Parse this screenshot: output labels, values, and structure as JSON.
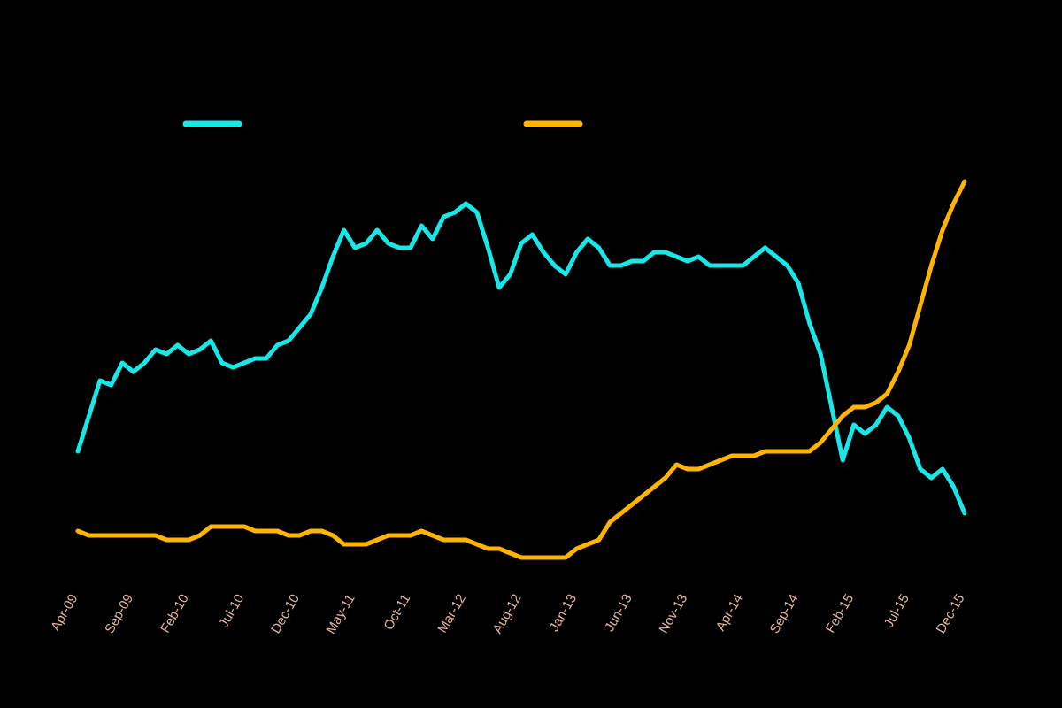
{
  "chart_data": {
    "type": "line",
    "categories": [
      "Apr-09",
      null,
      null,
      null,
      null,
      "Sep-09",
      null,
      null,
      null,
      null,
      "Feb-10",
      null,
      null,
      null,
      null,
      "Jul-10",
      null,
      null,
      null,
      null,
      "Dec-10",
      null,
      null,
      null,
      null,
      "May-11",
      null,
      null,
      null,
      null,
      "Oct-11",
      null,
      null,
      null,
      null,
      "Mar-12",
      null,
      null,
      null,
      null,
      "Aug-12",
      null,
      null,
      null,
      null,
      "Jan-13",
      null,
      null,
      null,
      null,
      "Jun-13",
      null,
      null,
      null,
      null,
      "Nov-13",
      null,
      null,
      null,
      null,
      "Apr-14",
      null,
      null,
      null,
      null,
      "Sep-14",
      null,
      null,
      null,
      null,
      "Feb-15",
      null,
      null,
      null,
      null,
      "Jul-15",
      null,
      null,
      null,
      null,
      "Dec-15"
    ],
    "series": [
      {
        "color": "#19e6e6",
        "values": [
          30,
          38,
          46,
          45,
          50,
          48,
          50,
          53,
          52,
          54,
          52,
          53,
          55,
          50,
          49,
          50,
          51,
          51,
          54,
          55,
          58,
          61,
          67,
          74,
          80,
          76,
          77,
          80,
          77,
          76,
          76,
          81,
          78,
          83,
          84,
          86,
          84,
          76,
          67,
          70,
          77,
          79,
          75,
          72,
          70,
          75,
          78,
          76,
          72,
          72,
          73,
          73,
          75,
          75,
          74,
          73,
          74,
          72,
          72,
          72,
          72,
          74,
          76,
          74,
          72,
          68,
          59,
          52,
          40,
          28,
          36,
          34,
          36,
          40,
          38,
          33,
          26,
          24,
          26,
          22,
          16
        ]
      },
      {
        "color": "#ffb400",
        "values": [
          12,
          11,
          11,
          11,
          11,
          11,
          11,
          11,
          10,
          10,
          10,
          11,
          13,
          13,
          13,
          13,
          12,
          12,
          12,
          11,
          11,
          12,
          12,
          11,
          9,
          9,
          9,
          10,
          11,
          11,
          11,
          12,
          11,
          10,
          10,
          10,
          9,
          8,
          8,
          7,
          6,
          6,
          6,
          6,
          6,
          8,
          9,
          10,
          14,
          16,
          18,
          20,
          22,
          24,
          27,
          26,
          26,
          27,
          28,
          29,
          29,
          29,
          30,
          30,
          30,
          30,
          30,
          32,
          35,
          38,
          40,
          40,
          41,
          43,
          48,
          54,
          63,
          72,
          80,
          86,
          91
        ]
      }
    ],
    "ylim": [
      0,
      100
    ]
  }
}
